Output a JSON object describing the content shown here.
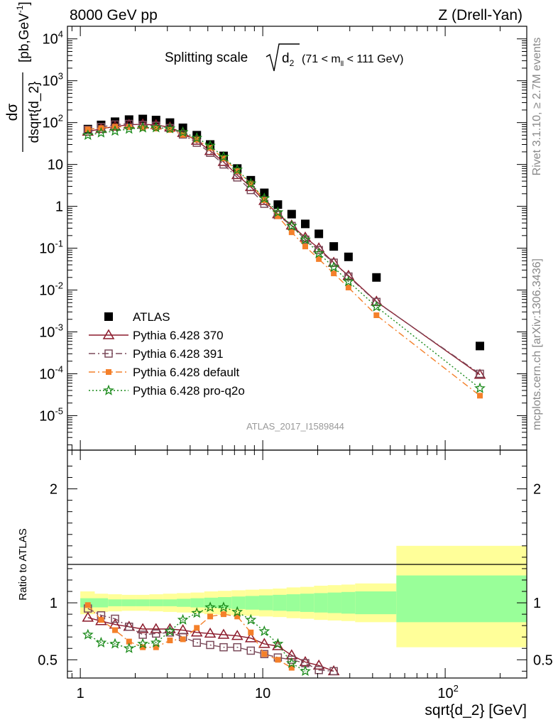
{
  "header": {
    "left_title": "8000 GeV pp",
    "right_title": "Z (Drell-Yan)"
  },
  "side_labels": {
    "rivet": "Rivet 3.1.10, ≥ 2.7M events",
    "mcplots": "mcplots.cern.ch [arXiv:1306.3436]"
  },
  "chart_data": [
    {
      "type": "scatter",
      "title_prefix": "Splitting scale",
      "title_sub": "d",
      "title_sub_index": "2",
      "title_suffix_open": "(71 < m",
      "title_suffix_sub": "ll",
      "title_suffix_close": " < 111 GeV)",
      "watermark": "ATLAS_2017_I1589844",
      "ylabel_num": "dσ",
      "ylabel_den": "dsqrt{d_2}",
      "ylabel_units": "[pb,GeV",
      "ylabel_units_exp": "-1",
      "ylabel_units_close": "]",
      "xscale": "log",
      "yscale": "log",
      "xlim": [
        0.85,
        280
      ],
      "ylim": [
        1.5e-06,
        20000
      ],
      "legend_position": "bottom-left",
      "yticks": [
        {
          "v": 1e-05,
          "b": "10",
          "e": "-5"
        },
        {
          "v": 0.0001,
          "b": "10",
          "e": "-4"
        },
        {
          "v": 0.001,
          "b": "10",
          "e": "-3"
        },
        {
          "v": 0.01,
          "b": "10",
          "e": "-2"
        },
        {
          "v": 0.1,
          "b": "10",
          "e": "-1"
        },
        {
          "v": 1,
          "b": "1",
          "e": ""
        },
        {
          "v": 10,
          "b": "10",
          "e": ""
        },
        {
          "v": 100,
          "b": "10",
          "e": "2"
        },
        {
          "v": 1000,
          "b": "10",
          "e": "3"
        },
        {
          "v": 10000,
          "b": "10",
          "e": "4"
        }
      ],
      "series": [
        {
          "name": "ATLAS",
          "color": "#000000",
          "marker": "filled-square",
          "x": [
            1.1,
            1.3,
            1.55,
            1.85,
            2.2,
            2.6,
            3.1,
            3.65,
            4.35,
            5.15,
            6.1,
            7.25,
            8.6,
            10.2,
            12.1,
            14.4,
            17.1,
            20.3,
            24.5,
            29.5,
            42,
            155
          ],
          "y": [
            70,
            88,
            105,
            118,
            122,
            115,
            100,
            75,
            50,
            30,
            16,
            8,
            4.2,
            2.1,
            1.1,
            0.65,
            0.38,
            0.22,
            0.11,
            0.062,
            0.02,
            0.00046
          ]
        },
        {
          "name": "Pythia 6.428 370",
          "color": "#8b1a2b",
          "marker": "open-triangle",
          "dash": "",
          "x": [
            1.1,
            1.3,
            1.55,
            1.85,
            2.2,
            2.6,
            3.1,
            3.65,
            4.35,
            5.15,
            6.1,
            7.25,
            8.6,
            10.2,
            12.1,
            14.4,
            17.1,
            20.3,
            24.5,
            29.5,
            42,
            155
          ],
          "y": [
            61,
            71,
            81,
            89,
            91,
            88,
            77,
            57,
            37,
            21,
            11.5,
            5.6,
            2.9,
            1.35,
            0.65,
            0.35,
            0.18,
            0.1,
            0.045,
            0.022,
            0.0053,
            9.5e-05
          ]
        },
        {
          "name": "Pythia 6.428 391",
          "color": "#7a4a5a",
          "marker": "open-square",
          "dash": "9,4,2,4",
          "x": [
            1.1,
            1.3,
            1.55,
            1.85,
            2.2,
            2.6,
            3.1,
            3.65,
            4.35,
            5.15,
            6.1,
            7.25,
            8.6,
            10.2,
            12.1,
            14.4,
            17.1,
            20.3,
            24.5,
            29.5,
            42,
            155
          ],
          "y": [
            67,
            78,
            90,
            93,
            88,
            84,
            74,
            52,
            33,
            19,
            10,
            4.9,
            2.45,
            1.15,
            0.62,
            0.34,
            0.16,
            0.09,
            0.045,
            0.021,
            0.0052,
            0.0001
          ]
        },
        {
          "name": "Pythia 6.428 default",
          "color": "#f4802a",
          "marker": "filled-small-square",
          "dash": "9,4,2,4",
          "x": [
            1.1,
            1.3,
            1.55,
            1.85,
            2.2,
            2.6,
            3.1,
            3.65,
            4.35,
            5.15,
            6.1,
            7.25,
            8.6,
            10.2,
            12.1,
            14.4,
            17.1,
            20.3,
            24.5,
            29.5,
            42,
            155
          ],
          "y": [
            69,
            74,
            80,
            78,
            74,
            72,
            67,
            51,
            39,
            25,
            14,
            7,
            3.5,
            1.4,
            0.58,
            0.24,
            0.11,
            0.055,
            0.025,
            0.0115,
            0.0025,
            3e-05
          ]
        },
        {
          "name": "Pythia 6.428 pro-q2o",
          "color": "#1a8a1a",
          "marker": "open-star",
          "dash": "2,3",
          "x": [
            1.1,
            1.3,
            1.55,
            1.85,
            2.2,
            2.6,
            3.1,
            3.65,
            4.35,
            5.15,
            6.1,
            7.25,
            8.6,
            10.2,
            12.1,
            14.4,
            17.1,
            20.3,
            24.5,
            29.5,
            42,
            155
          ],
          "y": [
            50,
            57,
            63,
            70,
            75,
            76,
            72,
            59,
            43,
            28,
            15.2,
            7.5,
            3.5,
            1.55,
            0.72,
            0.34,
            0.16,
            0.075,
            0.035,
            0.016,
            0.004,
            4.5e-05
          ]
        }
      ]
    },
    {
      "type": "line",
      "ylabel": "Ratio to ATLAS",
      "xlabel": "sqrt{d_2} [GeV]",
      "xscale": "log",
      "xlim": [
        0.85,
        280
      ],
      "ylim": [
        0.34,
        2.34
      ],
      "yticks": [
        "0.5",
        "1",
        "2"
      ],
      "xticks": [
        {
          "v": 1,
          "b": "1",
          "e": ""
        },
        {
          "v": 10,
          "b": "10",
          "e": ""
        },
        {
          "v": 100,
          "b": "10",
          "e": "2"
        }
      ],
      "uncertainty_bands": {
        "inner_color": "#99ff99",
        "outer_color": "#ffff99",
        "bins": [
          {
            "x0": 1.0,
            "x1": 1.2,
            "inner": [
              0.96,
              1.04
            ],
            "outer": [
              0.9,
              1.1
            ]
          },
          {
            "x0": 1.2,
            "x1": 1.42,
            "inner": [
              0.96,
              1.04
            ],
            "outer": [
              0.92,
              1.08
            ]
          },
          {
            "x0": 1.42,
            "x1": 1.69,
            "inner": [
              0.97,
              1.03
            ],
            "outer": [
              0.925,
              1.075
            ]
          },
          {
            "x0": 1.69,
            "x1": 2.01,
            "inner": [
              0.97,
              1.03
            ],
            "outer": [
              0.93,
              1.07
            ]
          },
          {
            "x0": 2.01,
            "x1": 2.39,
            "inner": [
              0.97,
              1.03
            ],
            "outer": [
              0.93,
              1.07
            ]
          },
          {
            "x0": 2.39,
            "x1": 2.84,
            "inner": [
              0.97,
              1.03
            ],
            "outer": [
              0.925,
              1.075
            ]
          },
          {
            "x0": 2.84,
            "x1": 3.38,
            "inner": [
              0.97,
              1.03
            ],
            "outer": [
              0.92,
              1.08
            ]
          },
          {
            "x0": 3.38,
            "x1": 4.02,
            "inner": [
              0.965,
              1.035
            ],
            "outer": [
              0.915,
              1.085
            ]
          },
          {
            "x0": 4.02,
            "x1": 4.78,
            "inner": [
              0.96,
              1.04
            ],
            "outer": [
              0.91,
              1.09
            ]
          },
          {
            "x0": 4.78,
            "x1": 5.68,
            "inner": [
              0.955,
              1.045
            ],
            "outer": [
              0.9,
              1.1
            ]
          },
          {
            "x0": 5.68,
            "x1": 6.75,
            "inner": [
              0.95,
              1.05
            ],
            "outer": [
              0.895,
              1.105
            ]
          },
          {
            "x0": 6.75,
            "x1": 8.03,
            "inner": [
              0.945,
              1.055
            ],
            "outer": [
              0.89,
              1.11
            ]
          },
          {
            "x0": 8.03,
            "x1": 9.55,
            "inner": [
              0.94,
              1.06
            ],
            "outer": [
              0.885,
              1.115
            ]
          },
          {
            "x0": 9.55,
            "x1": 11.35,
            "inner": [
              0.935,
              1.065
            ],
            "outer": [
              0.88,
              1.12
            ]
          },
          {
            "x0": 11.35,
            "x1": 13.5,
            "inner": [
              0.93,
              1.07
            ],
            "outer": [
              0.875,
              1.125
            ]
          },
          {
            "x0": 13.5,
            "x1": 16.05,
            "inner": [
              0.925,
              1.075
            ],
            "outer": [
              0.865,
              1.135
            ]
          },
          {
            "x0": 16.05,
            "x1": 19.1,
            "inner": [
              0.92,
              1.08
            ],
            "outer": [
              0.86,
              1.14
            ]
          },
          {
            "x0": 19.1,
            "x1": 22.7,
            "inner": [
              0.915,
              1.085
            ],
            "outer": [
              0.85,
              1.15
            ]
          },
          {
            "x0": 22.7,
            "x1": 27.0,
            "inner": [
              0.91,
              1.09
            ],
            "outer": [
              0.845,
              1.155
            ]
          },
          {
            "x0": 27.0,
            "x1": 32.1,
            "inner": [
              0.905,
              1.095
            ],
            "outer": [
              0.84,
              1.16
            ]
          },
          {
            "x0": 32.1,
            "x1": 54,
            "inner": [
              0.9,
              1.1
            ],
            "outer": [
              0.83,
              1.17
            ]
          },
          {
            "x0": 54,
            "x1": 280,
            "inner": [
              0.83,
              1.24
            ],
            "outer": [
              0.61,
              1.5
            ]
          }
        ]
      },
      "series": [
        {
          "name": "Pythia 6.428 370",
          "color": "#8b1a2b",
          "marker": "open-triangle",
          "dash": "",
          "x": [
            1.1,
            1.3,
            1.55,
            1.85,
            2.2,
            2.6,
            3.1,
            3.65,
            4.35,
            5.15,
            6.1,
            7.25,
            8.6,
            10.2,
            12.1,
            14.4,
            17.1,
            20.3,
            24.5
          ],
          "y": [
            0.87,
            0.84,
            0.81,
            0.79,
            0.77,
            0.77,
            0.77,
            0.76,
            0.74,
            0.73,
            0.72,
            0.71,
            0.69,
            0.64,
            0.62,
            0.54,
            0.48,
            0.45,
            0.4
          ]
        },
        {
          "name": "Pythia 6.428 391",
          "color": "#7a4a5a",
          "marker": "open-square",
          "dash": "9,4,2,4",
          "x": [
            1.1,
            1.3,
            1.55,
            1.85,
            2.2,
            2.6,
            3.1,
            3.65,
            4.35,
            5.15,
            6.1,
            7.25,
            8.6,
            10.2,
            12.1,
            14.4,
            17.1,
            20.3,
            24.5
          ],
          "y": [
            0.95,
            0.89,
            0.86,
            0.79,
            0.72,
            0.73,
            0.74,
            0.7,
            0.65,
            0.63,
            0.61,
            0.61,
            0.58,
            0.55,
            0.52,
            0.5,
            0.47,
            0.41,
            0.4
          ]
        },
        {
          "name": "Pythia 6.428 default",
          "color": "#f4802a",
          "marker": "filled-small-square",
          "dash": "9,4,2,4",
          "x": [
            1.1,
            1.3,
            1.55,
            1.85,
            2.2,
            2.6,
            3.1,
            3.65,
            4.35,
            5.15,
            6.1,
            7.25,
            8.6,
            10.2,
            12.1,
            14.4
          ],
          "y": [
            0.98,
            0.85,
            0.76,
            0.66,
            0.61,
            0.61,
            0.67,
            0.68,
            0.78,
            0.88,
            0.9,
            0.88,
            0.74,
            0.55,
            0.5,
            0.43
          ]
        },
        {
          "name": "Pythia 6.428 pro-q2o",
          "color": "#1a8a1a",
          "marker": "open-star",
          "dash": "2,3",
          "x": [
            1.1,
            1.3,
            1.55,
            1.85,
            2.2,
            2.6,
            3.1,
            3.65,
            4.35,
            5.15,
            6.1,
            7.25,
            8.6,
            10.2,
            12.1,
            14.4,
            17.1
          ],
          "y": [
            0.72,
            0.65,
            0.64,
            0.6,
            0.64,
            0.65,
            0.75,
            0.85,
            0.91,
            0.96,
            0.96,
            0.92,
            0.85,
            0.75,
            0.64,
            0.47,
            0.4
          ]
        }
      ]
    }
  ]
}
